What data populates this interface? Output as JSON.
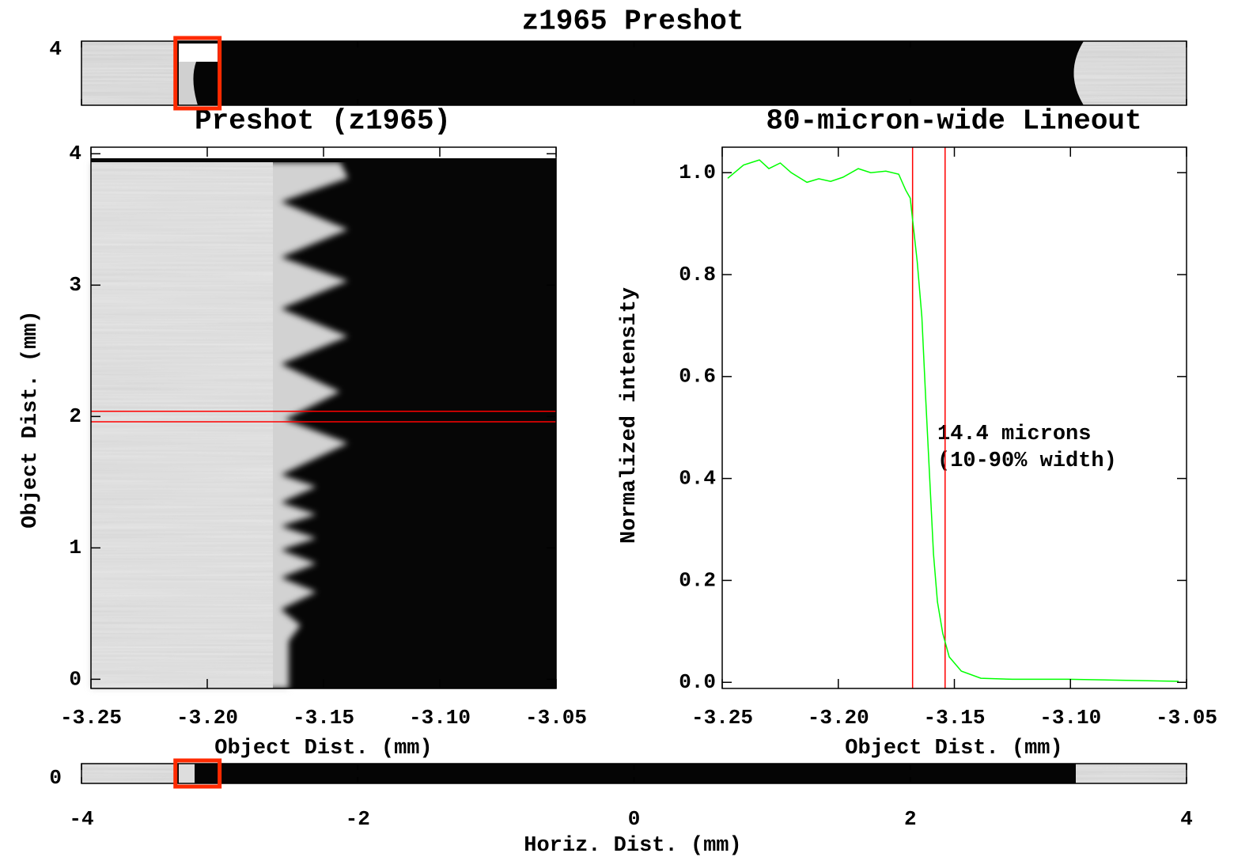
{
  "chart_data": [
    {
      "type": "image-strip",
      "title": "z1965 Preshot",
      "xlabel": "Horiz. Dist. (mm)",
      "xlim": [
        -4,
        4
      ],
      "xticks": [
        -4,
        -2,
        0,
        2,
        4
      ],
      "yticks_top": [
        4
      ],
      "yticks_bottom": [
        0
      ],
      "zoom_box": [
        -3.32,
        -3.0
      ],
      "box_color": "#ff2a00"
    },
    {
      "type": "image",
      "title": "Preshot (z1965)",
      "xlabel": "Object Dist. (mm)",
      "ylabel": "Object Dist. (mm)",
      "xlim": [
        -3.25,
        -3.05
      ],
      "ylim": [
        -0.07,
        4.05
      ],
      "xticks": [
        -3.25,
        {
          "value": -3.2,
          "label": "-3.20"
        },
        -3.15,
        {
          "value": -3.1,
          "label": "-3.10"
        },
        -3.05
      ],
      "yticks": [
        0,
        1,
        2,
        3,
        4
      ],
      "lineout_band": [
        1.96,
        2.04
      ],
      "band_color": "#ff0000"
    },
    {
      "type": "line",
      "title": "80-micron-wide Lineout",
      "xlabel": "Object Dist. (mm)",
      "ylabel": "Normalized intensity",
      "xlim": [
        -3.25,
        -3.05
      ],
      "ylim": [
        -0.012,
        1.05
      ],
      "xticks": [
        -3.25,
        {
          "value": -3.2,
          "label": "-3.20"
        },
        -3.15,
        {
          "value": -3.1,
          "label": "-3.10"
        },
        -3.05
      ],
      "yticks": [
        {
          "value": 0,
          "label": "0.0"
        },
        {
          "value": 0.2,
          "label": "0.2"
        },
        {
          "value": 0.4,
          "label": "0.4"
        },
        {
          "value": 0.6,
          "label": "0.6"
        },
        {
          "value": 0.8,
          "label": "0.8"
        },
        {
          "value": 1,
          "label": "1.0"
        }
      ],
      "x": [
        -3.2476,
        -3.2408,
        -3.234,
        -3.2299,
        -3.225,
        -3.2203,
        -3.2135,
        -3.2084,
        -3.2033,
        -3.198,
        -3.1914,
        -3.186,
        -3.1795,
        -3.174,
        -3.171,
        -3.169,
        -3.1675,
        -3.166,
        -3.164,
        -3.1624,
        -3.1607,
        -3.159,
        -3.1573,
        -3.155,
        -3.1522,
        -3.147,
        -3.1386,
        -3.125,
        -3.1011,
        -3.0534
      ],
      "series": [
        {
          "color": "#00ff00",
          "values": [
            0.989,
            1.015,
            1.025,
            1.008,
            1.019,
            1.0,
            0.981,
            0.988,
            0.983,
            0.991,
            1.008,
            1.0,
            1.003,
            0.997,
            0.966,
            0.95,
            0.888,
            0.826,
            0.717,
            0.562,
            0.407,
            0.252,
            0.158,
            0.096,
            0.05,
            0.022,
            0.008,
            0.006,
            0.006,
            0.002
          ]
        }
      ],
      "vlines": [
        -3.168,
        -3.154
      ],
      "vline_color": "#ff0000",
      "annotations": [
        "14.4 microns",
        "(10-90% width)"
      ]
    }
  ]
}
